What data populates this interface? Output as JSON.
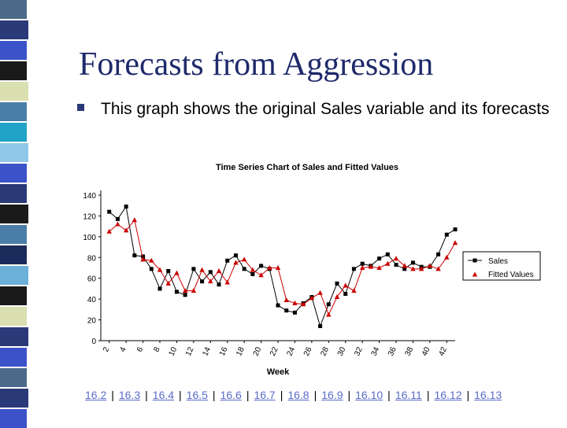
{
  "slide": {
    "title": "Forecasts from Aggression",
    "bullet": "This graph shows the original Sales variable and its forecasts"
  },
  "colors": {
    "title": "#1f2a6b",
    "sales_line": "#000000",
    "fitted_line": "#cc0000",
    "link": "#5a6bc8"
  },
  "chart_data": {
    "type": "line",
    "title": "Time Series Chart of Sales and Fitted Values",
    "xlabel": "Week",
    "ylabel": "",
    "ylim": [
      0,
      140
    ],
    "yticks": [
      "0",
      "20",
      "40",
      "60",
      "80",
      "100",
      "120",
      "140"
    ],
    "xticks": [
      "2",
      "4",
      "6",
      "8",
      "10",
      "12",
      "14",
      "16",
      "18",
      "20",
      "22",
      "24",
      "26",
      "28",
      "30",
      "32",
      "34",
      "36",
      "38",
      "40",
      "42"
    ],
    "x": [
      2,
      3,
      4,
      5,
      6,
      7,
      8,
      9,
      10,
      11,
      12,
      13,
      14,
      15,
      16,
      17,
      18,
      19,
      20,
      21,
      22,
      23,
      24,
      25,
      26,
      27,
      28,
      29,
      30,
      31,
      32,
      33,
      34,
      35,
      36,
      37,
      38,
      39,
      40,
      41,
      42,
      43
    ],
    "series": [
      {
        "name": "Sales",
        "marker": "square",
        "values": [
          124,
          117,
          129,
          82,
          81,
          69,
          50,
          67,
          47,
          44,
          69,
          57,
          66,
          54,
          77,
          82,
          69,
          64,
          72,
          69,
          34,
          29,
          27,
          36,
          42,
          14,
          35,
          55,
          45,
          69,
          74,
          72,
          79,
          83,
          73,
          69,
          75,
          71,
          71,
          83,
          102,
          107
        ]
      },
      {
        "name": "Fitted Values",
        "marker": "triangle",
        "values": [
          105,
          112,
          106,
          116,
          78,
          77,
          68,
          55,
          65,
          48,
          48,
          68,
          57,
          67,
          56,
          75,
          78,
          68,
          63,
          70,
          70,
          39,
          36,
          35,
          41,
          46,
          25,
          42,
          53,
          48,
          70,
          71,
          70,
          74,
          79,
          72,
          69,
          69,
          72,
          69,
          80,
          94
        ]
      }
    ]
  },
  "nav": {
    "links": [
      "16.2",
      "16.3",
      "16.4",
      "16.5",
      "16.6",
      "16.7",
      "16.8",
      "16.9",
      "16.10",
      "16.11",
      "16.12",
      "16.13"
    ],
    "separator": "|"
  }
}
